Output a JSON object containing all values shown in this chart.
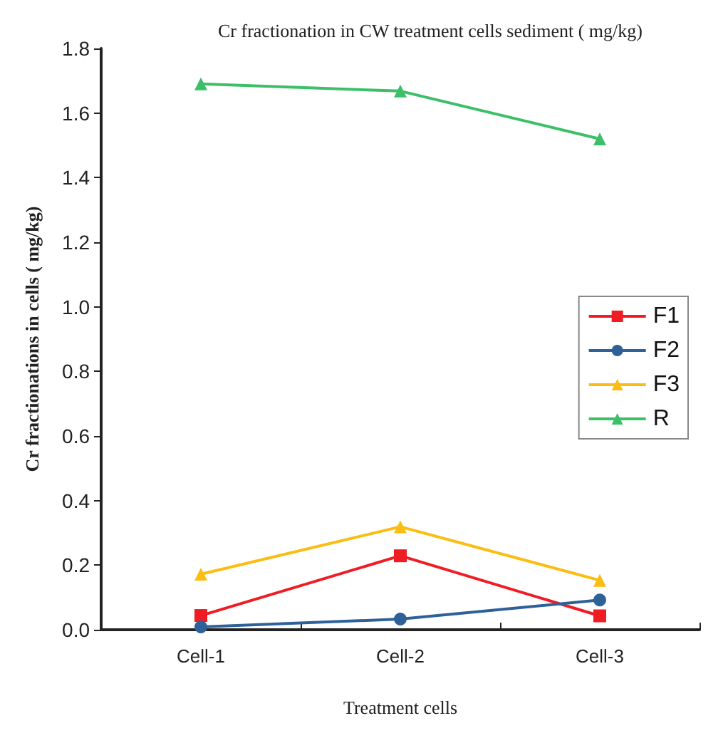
{
  "chart_data": {
    "type": "line",
    "title": "Cr fractionation in CW treatment cells sediment ( mg/kg)",
    "xlabel": "Treatment cells",
    "ylabel": "Cr fractionations in cells ( mg/kg)",
    "categories": [
      "Cell-1",
      "Cell-2",
      "Cell-3"
    ],
    "series": [
      {
        "name": "F1",
        "color": "#f01c24",
        "marker": "square",
        "values": [
          0.044,
          0.229,
          0.043
        ]
      },
      {
        "name": "F2",
        "color": "#2f6199",
        "marker": "circle",
        "values": [
          0.009,
          0.033,
          0.092
        ]
      },
      {
        "name": "F3",
        "color": "#fbbd12",
        "marker": "triangle",
        "values": [
          0.172,
          0.319,
          0.153
        ]
      },
      {
        "name": "R",
        "color": "#3cbf68",
        "marker": "triangle",
        "values": [
          1.69,
          1.668,
          1.52
        ]
      }
    ],
    "ylim": [
      0,
      1.8
    ],
    "yticks": [
      {
        "value": 0,
        "label": "0.0"
      },
      0.2,
      0.4,
      0.6,
      0.8,
      {
        "value": 1,
        "label": "1.0"
      },
      1.2,
      1.4,
      1.6,
      1.8
    ],
    "grid": false,
    "legend": "right"
  }
}
